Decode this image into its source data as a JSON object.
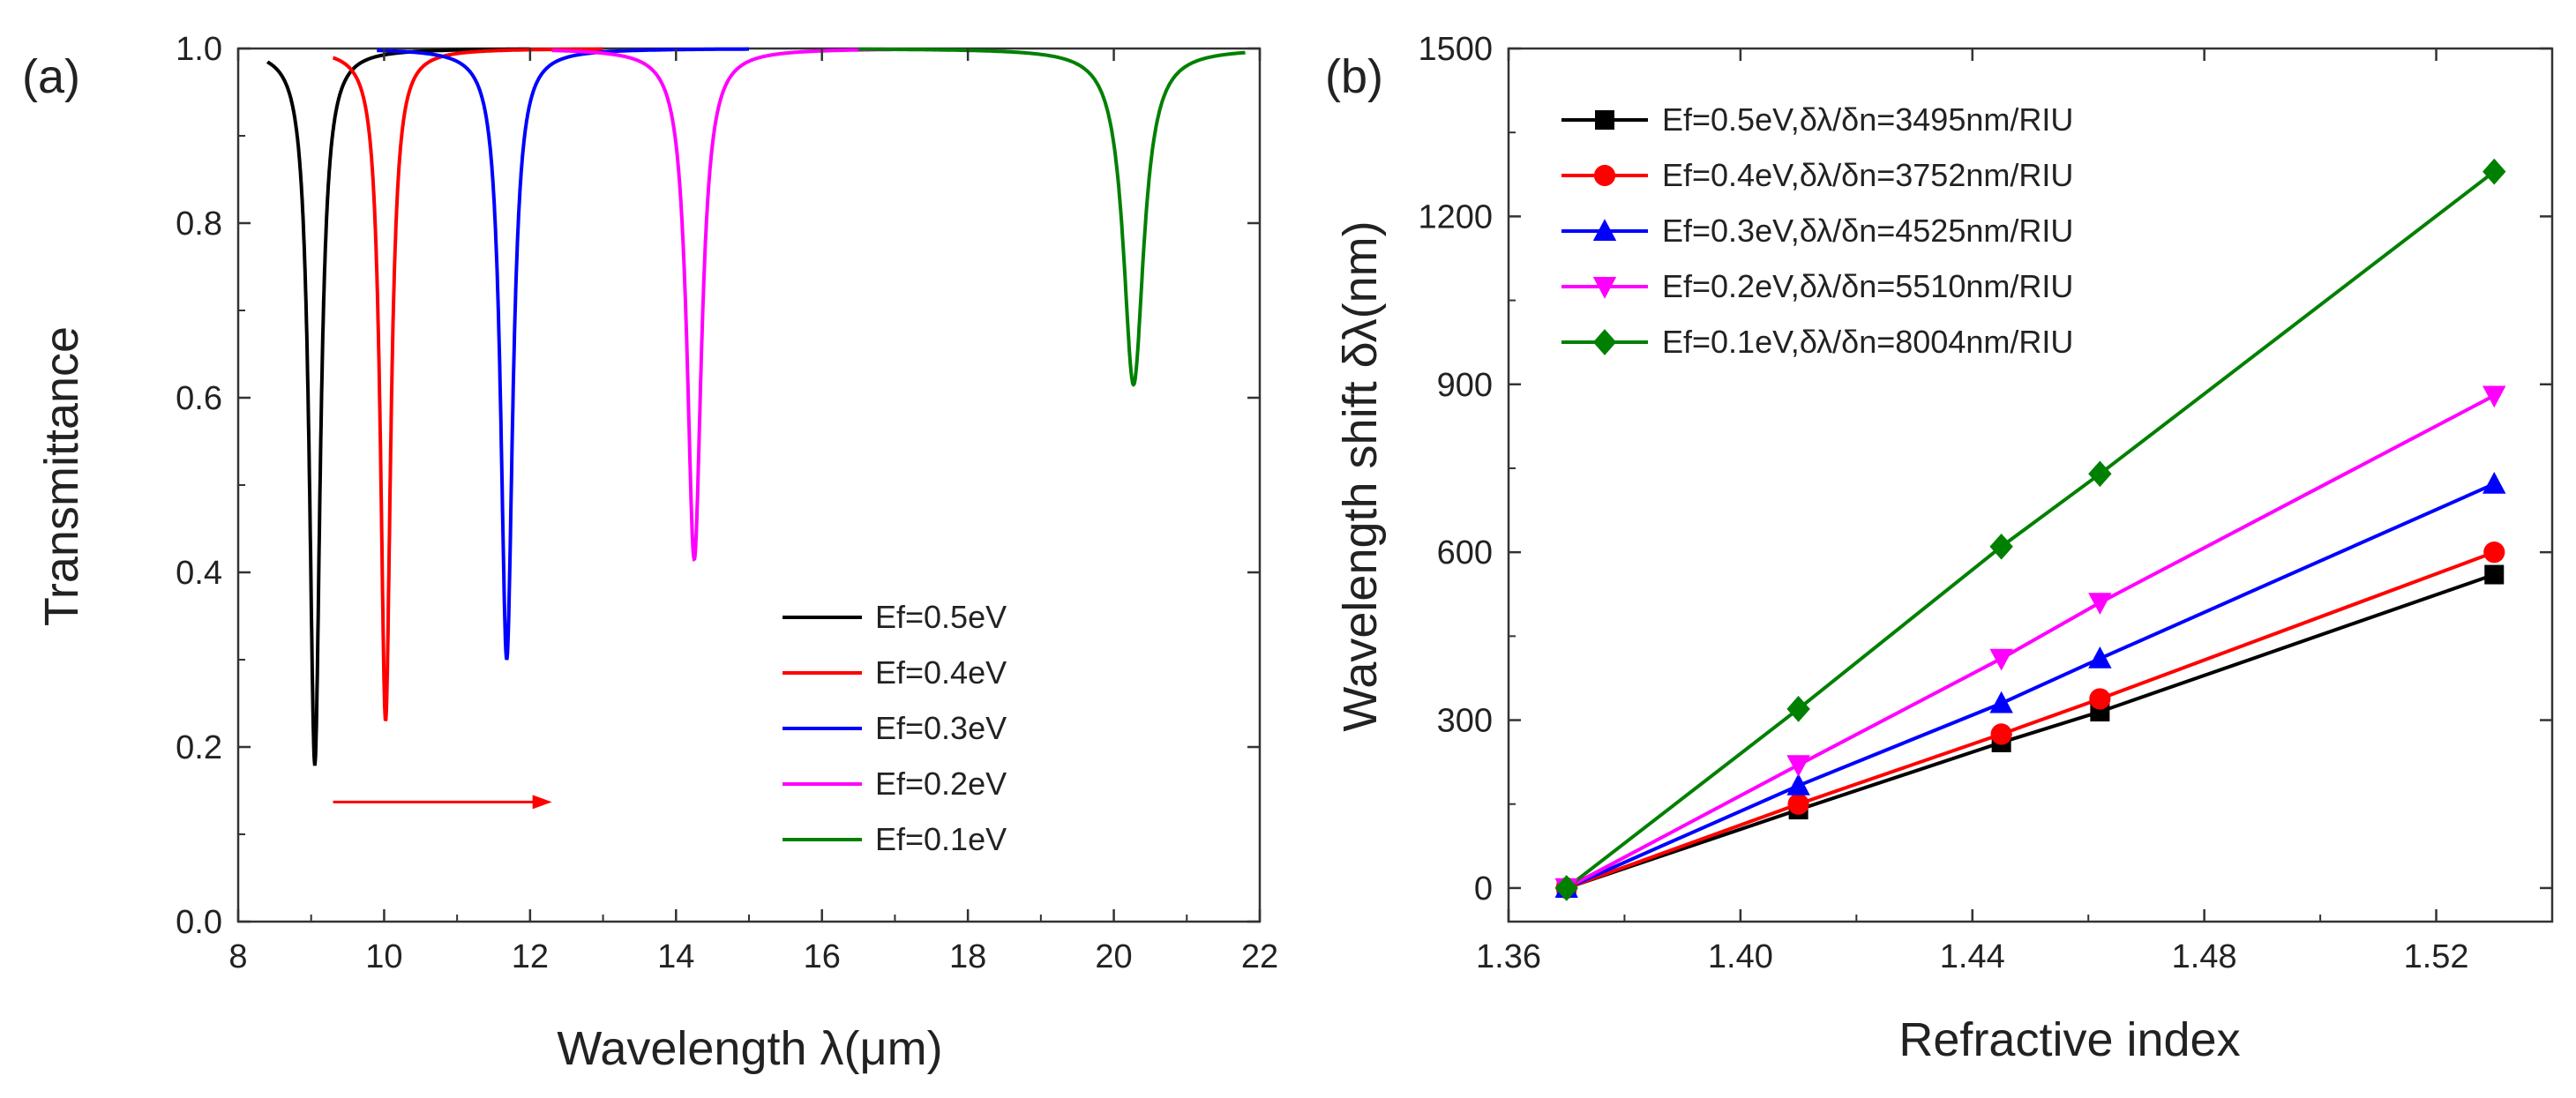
{
  "chart_data": [
    {
      "panel": "(a)",
      "type": "line",
      "title": "",
      "xlabel": "Wavelength λ(μm)",
      "ylabel": "Transmittance",
      "xlim": [
        8,
        22
      ],
      "ylim": [
        0.0,
        1.0
      ],
      "xticks": [
        8,
        10,
        12,
        14,
        16,
        18,
        20,
        22
      ],
      "yticks": [
        0.0,
        0.2,
        0.4,
        0.6,
        0.8,
        1.0
      ],
      "xtick_labels": [
        "8",
        "10",
        "12",
        "14",
        "16",
        "18",
        "20",
        "22"
      ],
      "ytick_labels": [
        "0.0",
        "0.2",
        "0.4",
        "0.6",
        "0.8",
        "1.0"
      ],
      "legend_position": "bottom-right",
      "series": [
        {
          "name": "Ef=0.5eV",
          "color": "#000000",
          "x_range": [
            8.4,
            12.0
          ],
          "dip_center": 9.05,
          "dip_min": 0.18,
          "dip_width": 0.09
        },
        {
          "name": "Ef=0.4eV",
          "color": "#ff0000",
          "x_range": [
            9.3,
            13.0
          ],
          "dip_center": 10.02,
          "dip_min": 0.23,
          "dip_width": 0.085
        },
        {
          "name": "Ef=0.3eV",
          "color": "#0000ff",
          "x_range": [
            9.9,
            15.0
          ],
          "dip_center": 11.68,
          "dip_min": 0.3,
          "dip_width": 0.1
        },
        {
          "name": "Ef=0.2eV",
          "color": "#ff00ff",
          "x_range": [
            12.3,
            17.0
          ],
          "dip_center": 14.25,
          "dip_min": 0.415,
          "dip_width": 0.12
        },
        {
          "name": "Ef=0.1eV",
          "color": "#008000",
          "x_range": [
            16.5,
            21.8
          ],
          "dip_center": 20.27,
          "dip_min": 0.615,
          "dip_width": 0.17
        }
      ],
      "annotation": {
        "type": "arrow",
        "color": "#ff0000",
        "from": [
          9.3,
          0.137
        ],
        "to": [
          12.3,
          0.137
        ]
      }
    },
    {
      "panel": "(b)",
      "type": "line",
      "title": "",
      "xlabel": "Refractive index",
      "ylabel": "Wavelength shift δλ(nm)",
      "xlim": [
        1.36,
        1.54
      ],
      "ylim": [
        -60,
        1500
      ],
      "xticks": [
        1.36,
        1.4,
        1.44,
        1.48,
        1.52
      ],
      "yticks": [
        0,
        300,
        600,
        900,
        1200,
        1500
      ],
      "xtick_labels": [
        "1.36",
        "1.40",
        "1.44",
        "1.48",
        "1.52"
      ],
      "ytick_labels": [
        "0",
        "300",
        "600",
        "900",
        "1200",
        "1500"
      ],
      "legend_position": "top-left",
      "x": [
        1.37,
        1.41,
        1.445,
        1.462,
        1.53
      ],
      "series": [
        {
          "name": "Ef=0.5eV,δλ/δn=3495nm/RIU",
          "color": "#000000",
          "marker": "square",
          "values": [
            0,
            140,
            260,
            315,
            560
          ]
        },
        {
          "name": "Ef=0.4eV,δλ/δn=3752nm/RIU",
          "color": "#ff0000",
          "marker": "circle",
          "values": [
            0,
            150,
            275,
            338,
            600
          ]
        },
        {
          "name": "Ef=0.3eV,δλ/δn=4525nm/RIU",
          "color": "#0000ff",
          "marker": "triangle-up",
          "values": [
            0,
            183,
            330,
            410,
            722
          ]
        },
        {
          "name": "Ef=0.2eV,δλ/δn=5510nm/RIU",
          "color": "#ff00ff",
          "marker": "triangle-down",
          "values": [
            0,
            220,
            410,
            510,
            880
          ]
        },
        {
          "name": "Ef=0.1eV,δλ/δn=8004nm/RIU",
          "color": "#008000",
          "marker": "diamond",
          "values": [
            0,
            320,
            610,
            740,
            1280
          ]
        }
      ]
    }
  ]
}
